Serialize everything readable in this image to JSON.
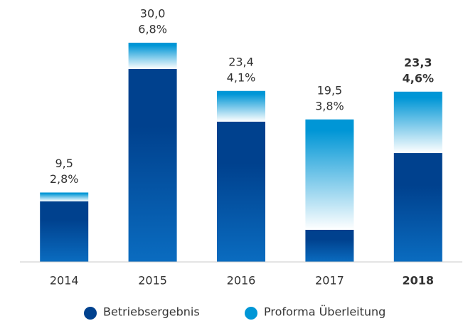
{
  "chart_data": {
    "type": "stacked_bar",
    "categories": [
      "2014",
      "2015",
      "2016",
      "2017",
      "2018"
    ],
    "series": [
      {
        "name": "Betriebsergebnis",
        "color": "#00418e",
        "values": [
          8.3,
          26.4,
          19.2,
          4.4,
          14.9
        ]
      },
      {
        "name": "Proforma Überleitung",
        "color": "#0096d6",
        "values": [
          1.2,
          3.6,
          4.2,
          15.1,
          8.4
        ]
      }
    ],
    "totals": [
      9.5,
      30.0,
      23.4,
      19.5,
      23.3
    ],
    "total_labels": [
      "9,5",
      "30,0",
      "23,4",
      "19,5",
      "23,3"
    ],
    "share_labels": [
      "2,8%",
      "6,8%",
      "4,1%",
      "3,8%",
      "4,6%"
    ],
    "highlight_index": 4,
    "ylim": [
      0,
      30
    ]
  }
}
